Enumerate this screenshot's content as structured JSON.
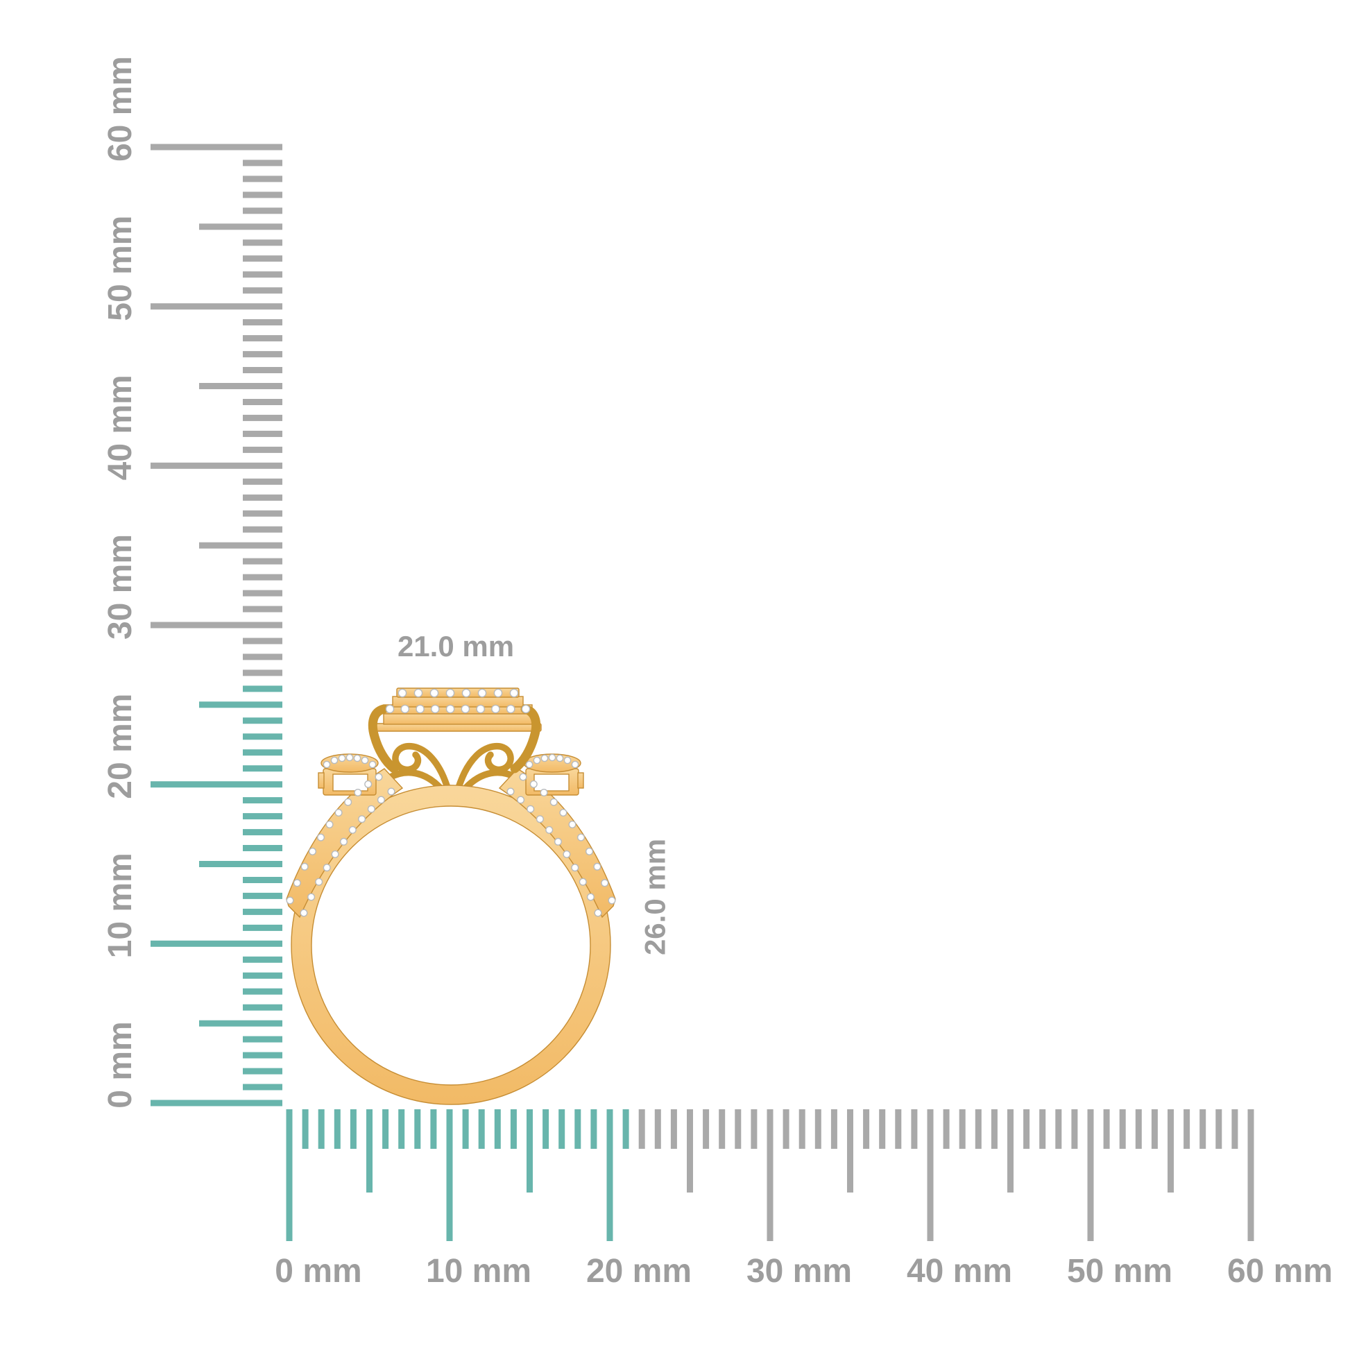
{
  "annotations": {
    "ring_width": "21.0 mm",
    "ring_height": "26.0 mm"
  },
  "rulers": {
    "unit": "mm",
    "vertical": {
      "labels": [
        "0 mm",
        "10 mm",
        "20 mm",
        "30 mm",
        "40 mm",
        "50 mm",
        "60 mm"
      ],
      "max_mm": 60,
      "minor_step_mm": 1,
      "highlight_up_to_mm": 26
    },
    "horizontal": {
      "labels": [
        "0 mm",
        "10 mm",
        "20 mm",
        "30 mm",
        "40 mm",
        "50 mm",
        "60 mm"
      ],
      "max_mm": 60,
      "minor_step_mm": 1,
      "highlight_up_to_mm": 21
    }
  },
  "colors": {
    "highlight_teal": "#68b5ac",
    "tick_gray": "#a9a9a9",
    "label_gray": "#9d9d9d",
    "gold_light": "#f9d79b",
    "gold_deep": "#f2ba66",
    "gold_edge": "#c68d33",
    "scroll_gold": "#c9952f",
    "diamond_white": "#ffffff",
    "diamond_edge": "#b7babd"
  },
  "ring": {
    "head_top_row_stones": 8,
    "head_second_row_stones": 10,
    "shank_row_stones": 11,
    "cluster_stones": 7
  }
}
